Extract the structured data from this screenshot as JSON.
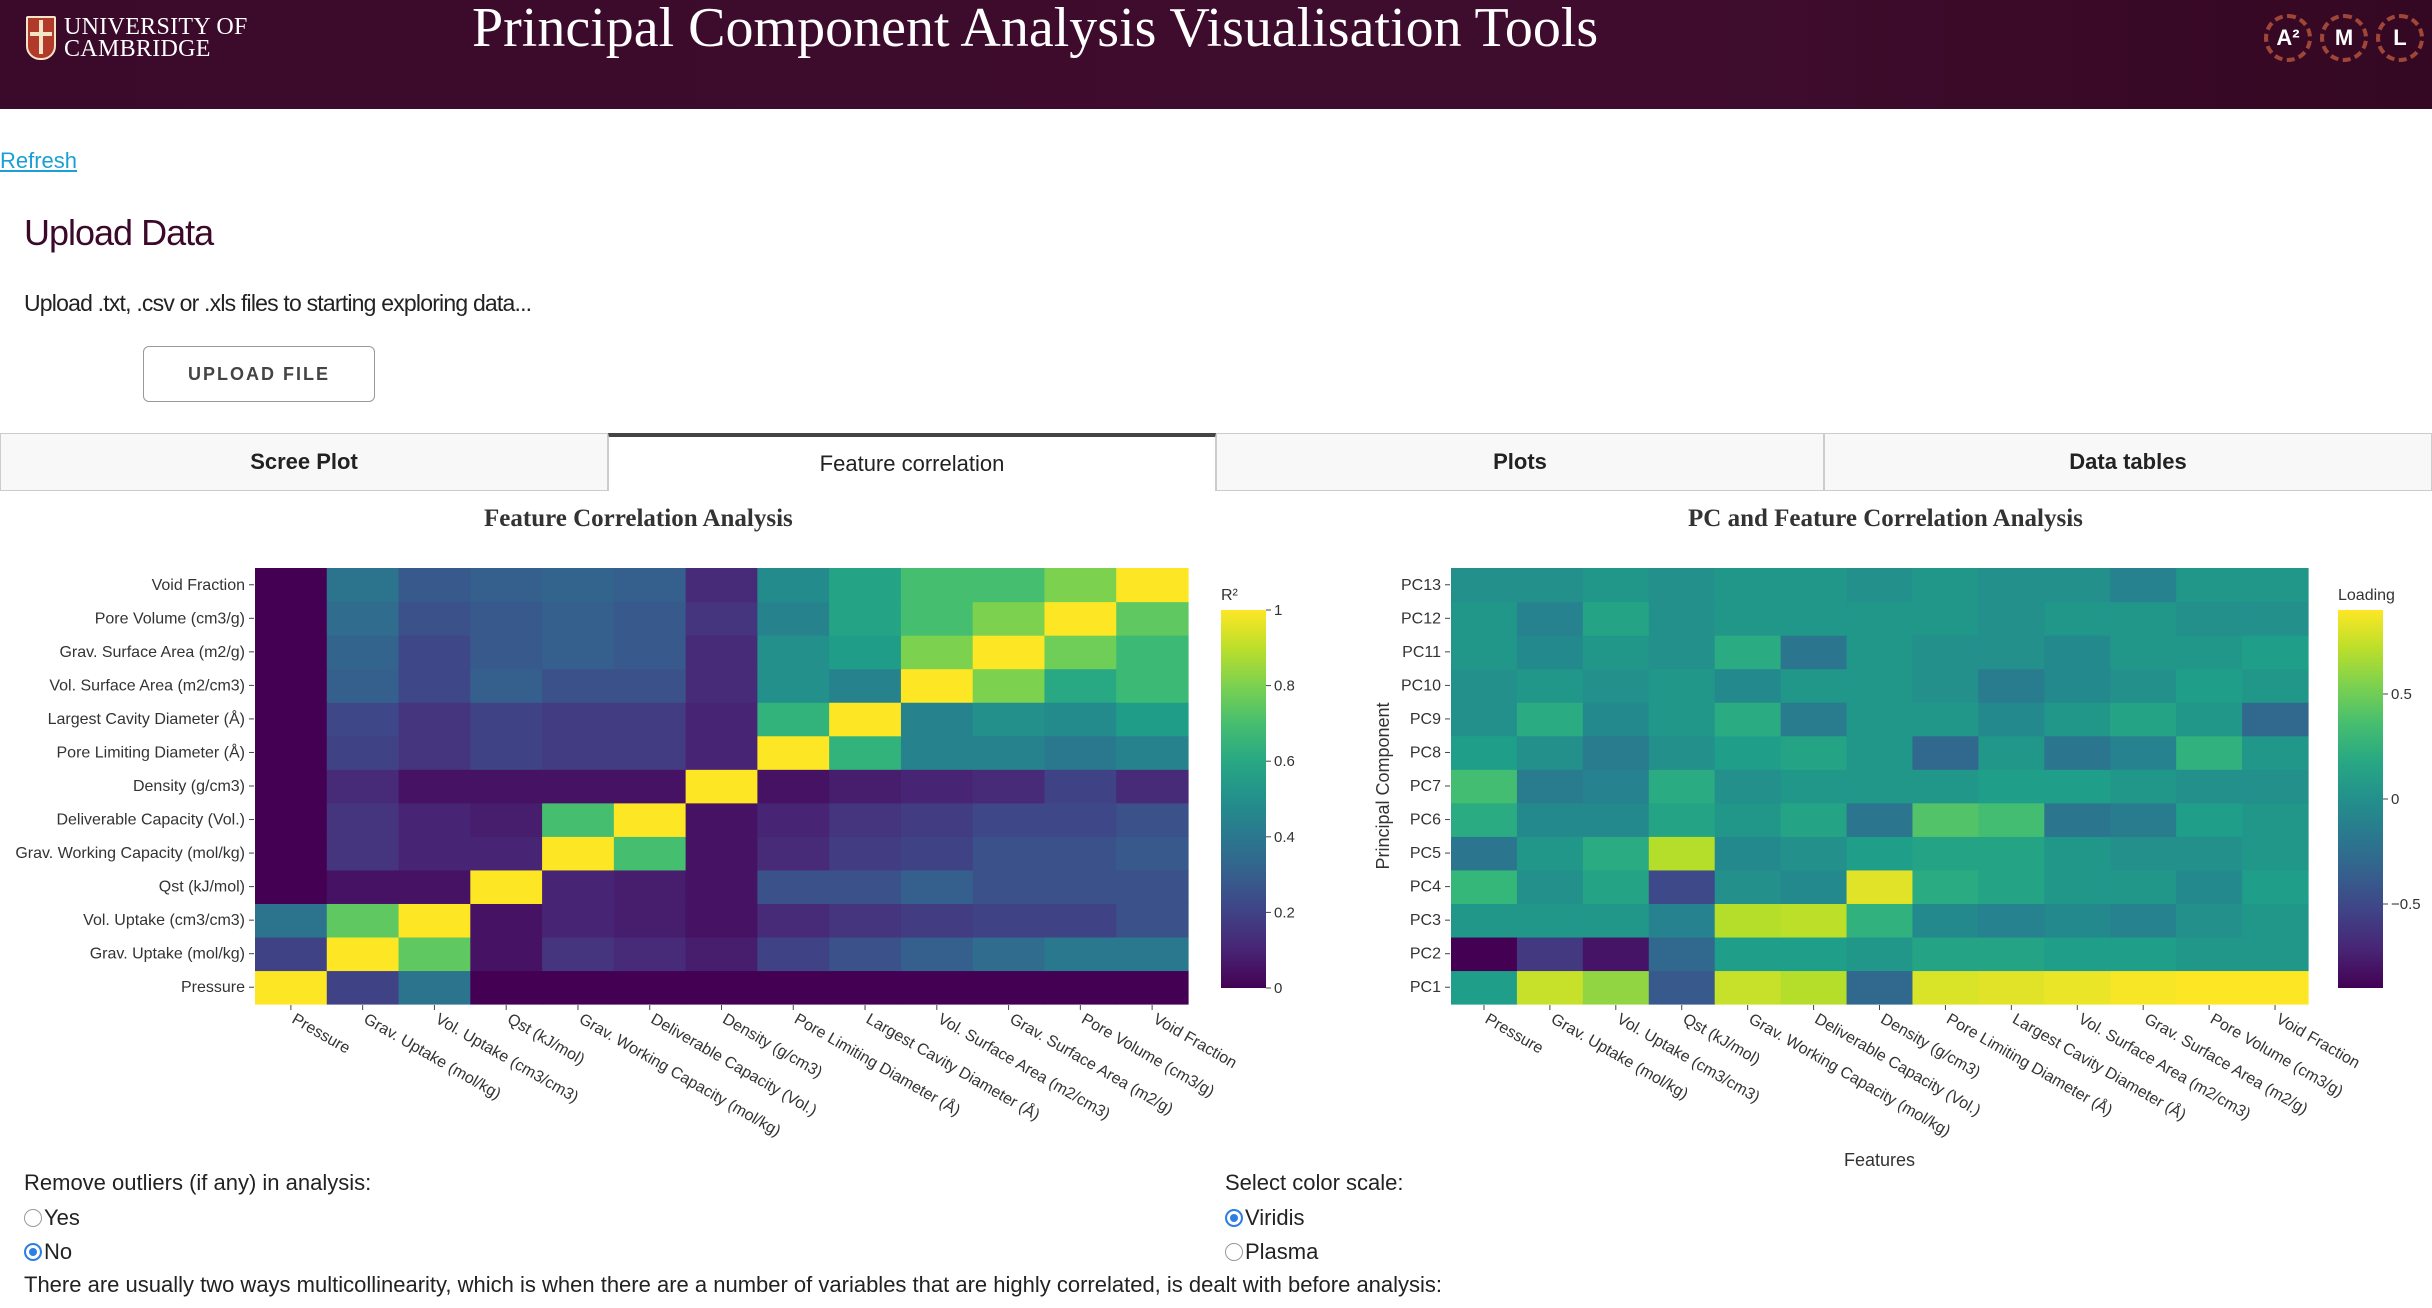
{
  "header": {
    "university": [
      "UNIVERSITY OF",
      "CAMBRIDGE"
    ],
    "title": "Principal Component Analysis Visualisation Tools",
    "lab_letters": [
      "A²",
      "M",
      "L"
    ]
  },
  "refresh_label": "Refresh",
  "upload": {
    "heading": "Upload Data",
    "description": "Upload .txt, .csv or .xls files to starting exploring data...",
    "button_label": "UPLOAD FILE"
  },
  "tabs": [
    {
      "label": "Scree Plot",
      "active": false
    },
    {
      "label": "Feature correlation",
      "active": true
    },
    {
      "label": "Plots",
      "active": false
    },
    {
      "label": "Data tables",
      "active": false
    }
  ],
  "chart_data": [
    {
      "type": "heatmap",
      "title": "Feature Correlation Analysis",
      "colorbar_title": "R²",
      "colorbar_ticks": [
        "0",
        "0.2",
        "0.4",
        "0.6",
        "0.8",
        "1"
      ],
      "zmin": 0,
      "zmax": 1,
      "colorscale": "Viridis",
      "x": [
        "Pressure",
        "Grav. Uptake (mol/kg)",
        "Vol. Uptake (cm3/cm3)",
        "Qst (kJ/mol)",
        "Grav. Working Capacity (mol/kg)",
        "Deliverable Capacity (Vol.)",
        "Density (g/cm3)",
        "Pore Limiting Diameter (Å)",
        "Largest Cavity Diameter (Å)",
        "Vol. Surface Area (m2/cm3)",
        "Grav. Surface Area (m2/g)",
        "Pore Volume (cm3/g)",
        "Void Fraction"
      ],
      "y": [
        "Pressure",
        "Grav. Uptake (mol/kg)",
        "Vol. Uptake (cm3/cm3)",
        "Qst (kJ/mol)",
        "Grav. Working Capacity (mol/kg)",
        "Deliverable Capacity (Vol.)",
        "Density (g/cm3)",
        "Pore Limiting Diameter (Å)",
        "Largest Cavity Diameter (Å)",
        "Vol. Surface Area (m2/cm3)",
        "Grav. Surface Area (m2/g)",
        "Pore Volume (cm3/g)",
        "Void Fraction"
      ],
      "z": [
        [
          1.0,
          0.2,
          0.38,
          0.0,
          0.0,
          0.0,
          0.0,
          0.0,
          0.0,
          0.0,
          0.0,
          0.0,
          0.0
        ],
        [
          0.2,
          1.0,
          0.75,
          0.05,
          0.15,
          0.12,
          0.08,
          0.2,
          0.25,
          0.3,
          0.35,
          0.4,
          0.4
        ],
        [
          0.38,
          0.75,
          1.0,
          0.05,
          0.1,
          0.08,
          0.05,
          0.12,
          0.15,
          0.18,
          0.2,
          0.2,
          0.25
        ],
        [
          0.0,
          0.05,
          0.05,
          1.0,
          0.1,
          0.08,
          0.05,
          0.25,
          0.25,
          0.3,
          0.25,
          0.25,
          0.25
        ],
        [
          0.0,
          0.15,
          0.1,
          0.1,
          1.0,
          0.7,
          0.05,
          0.12,
          0.18,
          0.2,
          0.25,
          0.25,
          0.28
        ],
        [
          0.0,
          0.15,
          0.1,
          0.08,
          0.7,
          1.0,
          0.05,
          0.1,
          0.15,
          0.18,
          0.22,
          0.22,
          0.25
        ],
        [
          0.0,
          0.12,
          0.05,
          0.05,
          0.05,
          0.05,
          1.0,
          0.05,
          0.08,
          0.1,
          0.12,
          0.2,
          0.12
        ],
        [
          0.0,
          0.2,
          0.15,
          0.2,
          0.18,
          0.18,
          0.1,
          1.0,
          0.65,
          0.45,
          0.45,
          0.4,
          0.45
        ],
        [
          0.0,
          0.22,
          0.15,
          0.2,
          0.18,
          0.18,
          0.1,
          0.65,
          1.0,
          0.45,
          0.5,
          0.48,
          0.55
        ],
        [
          0.0,
          0.3,
          0.22,
          0.3,
          0.25,
          0.25,
          0.12,
          0.5,
          0.45,
          1.0,
          0.8,
          0.6,
          0.68
        ],
        [
          0.0,
          0.32,
          0.22,
          0.28,
          0.3,
          0.28,
          0.12,
          0.5,
          0.55,
          0.8,
          1.0,
          0.78,
          0.68
        ],
        [
          0.0,
          0.35,
          0.25,
          0.28,
          0.3,
          0.28,
          0.15,
          0.45,
          0.58,
          0.7,
          0.8,
          1.0,
          0.75
        ],
        [
          0.0,
          0.38,
          0.28,
          0.3,
          0.32,
          0.3,
          0.12,
          0.48,
          0.58,
          0.7,
          0.7,
          0.8,
          1.0
        ]
      ]
    },
    {
      "type": "heatmap",
      "title": "PC and Feature Correlation Analysis",
      "xlabel": "Features",
      "ylabel": "Principal Component",
      "colorbar_title": "Loading",
      "colorbar_ticks": [
        "−0.5",
        "0",
        "0.5"
      ],
      "zmin": -0.9,
      "zmax": 0.9,
      "colorscale": "Viridis",
      "x": [
        "Pressure",
        "Grav. Uptake (mol/kg)",
        "Vol. Uptake (cm3/cm3)",
        "Qst (kJ/mol)",
        "Grav. Working Capacity (mol/kg)",
        "Deliverable Capacity (Vol.)",
        "Density (g/cm3)",
        "Pore Limiting Diameter (Å)",
        "Largest Cavity Diameter (Å)",
        "Vol. Surface Area (m2/cm3)",
        "Grav. Surface Area (m2/g)",
        "Pore Volume (cm3/g)",
        "Void Fraction"
      ],
      "y": [
        "PC1",
        "PC2",
        "PC3",
        "PC4",
        "PC5",
        "PC6",
        "PC7",
        "PC8",
        "PC9",
        "PC10",
        "PC11",
        "PC12",
        "PC13"
      ],
      "z": [
        [
          0.1,
          0.75,
          0.6,
          -0.4,
          0.75,
          0.7,
          -0.3,
          0.8,
          0.82,
          0.85,
          0.88,
          0.9,
          0.9
        ],
        [
          -0.9,
          -0.6,
          -0.8,
          -0.3,
          0.1,
          0.1,
          0.05,
          0.15,
          0.15,
          0.1,
          0.1,
          0.05,
          0.05
        ],
        [
          0.05,
          0.05,
          0.05,
          -0.1,
          0.7,
          0.72,
          0.25,
          -0.05,
          -0.1,
          -0.05,
          -0.1,
          0.0,
          0.05
        ],
        [
          0.3,
          0.0,
          0.15,
          -0.5,
          0.0,
          -0.05,
          0.82,
          0.2,
          0.15,
          0.05,
          0.05,
          -0.05,
          0.1
        ],
        [
          -0.2,
          0.05,
          0.2,
          0.7,
          -0.05,
          0.0,
          0.1,
          0.15,
          0.15,
          0.05,
          0.0,
          0.0,
          0.05
        ],
        [
          0.2,
          -0.05,
          -0.05,
          0.15,
          0.05,
          0.15,
          -0.2,
          0.4,
          0.35,
          -0.2,
          -0.15,
          0.1,
          0.05
        ],
        [
          0.35,
          -0.15,
          -0.1,
          0.2,
          0.0,
          0.05,
          0.05,
          0.05,
          0.1,
          0.1,
          0.05,
          0.0,
          0.0
        ],
        [
          0.1,
          0.0,
          -0.15,
          0.0,
          0.1,
          0.15,
          0.05,
          -0.3,
          0.05,
          -0.2,
          -0.1,
          0.25,
          0.05
        ],
        [
          0.0,
          0.2,
          -0.05,
          0.05,
          0.2,
          -0.15,
          0.05,
          0.05,
          -0.05,
          0.05,
          0.15,
          0.05,
          -0.3
        ],
        [
          0.0,
          0.05,
          0.0,
          0.05,
          -0.05,
          0.05,
          0.05,
          0.0,
          -0.15,
          -0.05,
          0.0,
          0.1,
          0.05
        ],
        [
          0.05,
          -0.05,
          0.05,
          0.0,
          0.2,
          -0.2,
          0.05,
          0.0,
          0.0,
          -0.05,
          0.05,
          0.05,
          0.1
        ],
        [
          0.05,
          -0.1,
          0.15,
          0.0,
          0.05,
          0.05,
          0.05,
          0.05,
          0.0,
          0.05,
          0.05,
          0.0,
          0.0
        ],
        [
          0.0,
          0.0,
          0.05,
          0.0,
          0.05,
          0.05,
          0.0,
          0.05,
          0.0,
          0.0,
          -0.1,
          0.05,
          0.05
        ]
      ]
    }
  ],
  "outliers": {
    "label": "Remove outliers (if any) in analysis:",
    "options": [
      {
        "label": "Yes",
        "selected": false
      },
      {
        "label": "No",
        "selected": true
      }
    ]
  },
  "color_scale": {
    "label": "Select color scale:",
    "options": [
      {
        "label": "Viridis",
        "selected": true
      },
      {
        "label": "Plasma",
        "selected": false
      }
    ]
  },
  "multicollinearity_text": "There are usually two ways multicollinearity, which is when there are a number of variables that are highly correlated, is dealt with before analysis:"
}
